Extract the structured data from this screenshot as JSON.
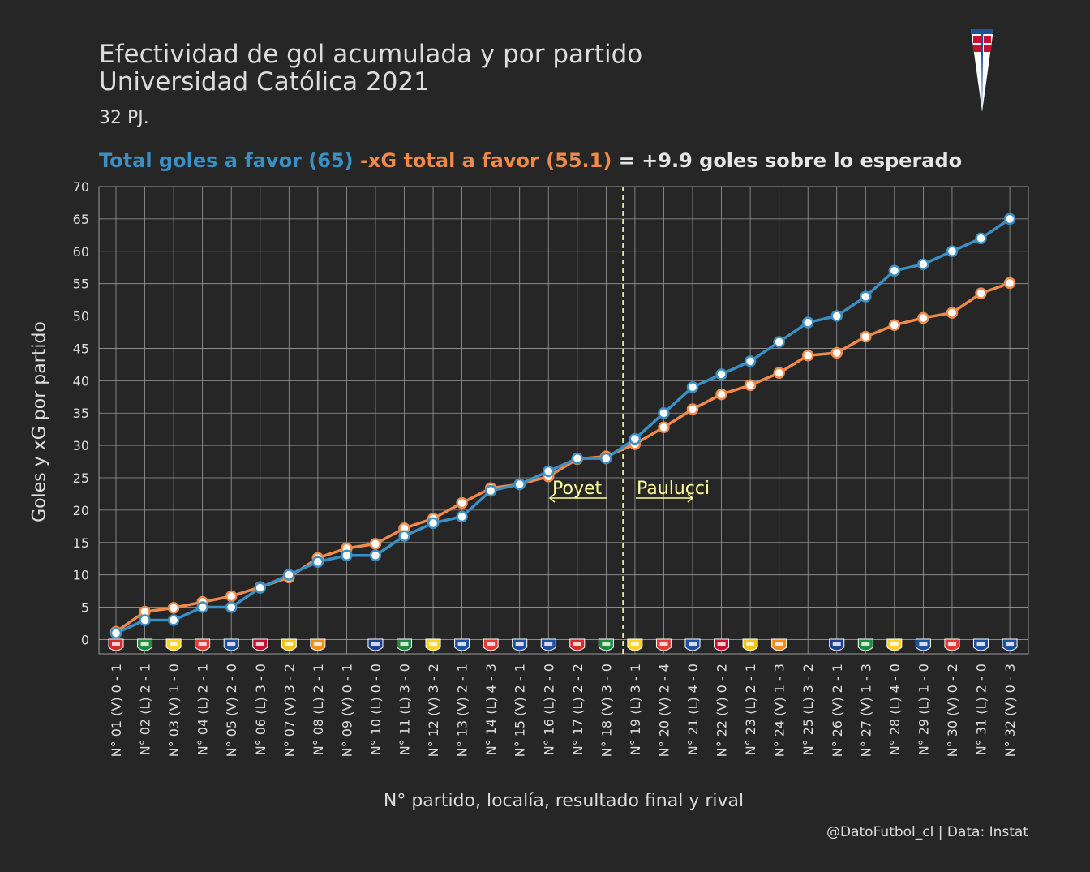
{
  "header": {
    "title_line1": "Efectividad de gol acumulada y por partido",
    "title_line2": "Universidad Católica 2021",
    "subtitle": "32 PJ.",
    "headline_goals": "Total goles a favor (65)",
    "headline_xg": "-xG total a favor (55.1)",
    "headline_result": "= +9.9 goles sobre lo esperado"
  },
  "caption": "@DatoFutbol_cl  |  Data: Instat",
  "colors": {
    "background": "#262626",
    "goals": "#3a8fc4",
    "xg": "#f08a4b",
    "annotation": "#ffff99",
    "grid": "#9a9a9a"
  },
  "chart_data": {
    "type": "line",
    "title": "Efectividad de gol acumulada y por partido",
    "xlabel": "N° partido, localía, resultado final y rival",
    "ylabel": "Goles y xG por partido",
    "ylim": [
      0,
      70
    ],
    "yticks": [
      0,
      5,
      10,
      15,
      20,
      25,
      30,
      35,
      40,
      45,
      50,
      55,
      60,
      65,
      70
    ],
    "grid": true,
    "categories": [
      "N° 01 (V) 0 - 1",
      "N° 02 (L) 2 - 1",
      "N° 03 (V) 1 - 0",
      "N° 04 (L) 2 - 1",
      "N° 05 (V) 2 - 0",
      "N° 06 (L) 3 - 0",
      "N° 07 (V) 3 - 2",
      "N° 08 (L) 2 - 1",
      "N° 09 (V) 0 - 1",
      "N° 10 (L) 0 - 0",
      "N° 11 (L) 3 - 0",
      "N° 12 (V) 3 - 2",
      "N° 13 (V) 2 - 1",
      "N° 14 (L) 4 - 3",
      "N° 15 (V) 2 - 1",
      "N° 16 (L) 2 - 0",
      "N° 17 (L) 2 - 2",
      "N° 18 (V) 3 - 0",
      "N° 19 (L) 3 - 1",
      "N° 20 (V) 2 - 4",
      "N° 21 (L) 4 - 0",
      "N° 22 (V) 0 - 2",
      "N° 23 (L) 2 - 1",
      "N° 24 (V) 1 - 3",
      "N° 25 (L) 3 - 2",
      "N° 26 (V) 2 - 1",
      "N° 27 (V) 1 - 3",
      "N° 28 (L) 4 - 0",
      "N° 29 (L) 1 - 0",
      "N° 30 (V) 0 - 2",
      "N° 31 (L) 2 - 0",
      "N° 32 (V) 0 - 3"
    ],
    "series": [
      {
        "name": "Total goles a favor",
        "color": "#3a8fc4",
        "values": [
          1,
          3,
          3,
          5,
          5,
          8,
          10,
          12,
          13,
          13,
          16,
          18,
          19,
          23,
          24,
          26,
          28,
          28,
          31,
          35,
          39,
          41,
          43,
          46,
          49,
          50,
          53,
          57,
          58,
          60,
          62,
          65
        ]
      },
      {
        "name": "xG total a favor",
        "color": "#f08a4b",
        "values": [
          1.2,
          4.3,
          4.9,
          5.8,
          6.7,
          8.1,
          9.6,
          12.6,
          14.1,
          14.8,
          17.2,
          18.7,
          21.1,
          23.4,
          24.0,
          25.2,
          27.9,
          28.3,
          30.2,
          32.8,
          35.6,
          37.9,
          39.3,
          41.2,
          43.9,
          44.3,
          46.8,
          48.6,
          49.7,
          50.5,
          53.5,
          55.1
        ]
      }
    ],
    "annotations": [
      {
        "text": "Poyet",
        "arrow": "left"
      },
      {
        "text": "Paulucci",
        "arrow": "right"
      }
    ],
    "divider_after_match": 18,
    "rival_crest_colors": [
      "#d42a2a",
      "#1f8a3c",
      "#ffd21f",
      "#e53935",
      "#1f4fa0",
      "#c8102e",
      "#f2c418",
      "#f28c18",
      "",
      "#1f3f8f",
      "#1f8a3c",
      "#ffd21f",
      "#1f4fa0",
      "#e53935",
      "#1f4fa0",
      "#1f4fa0",
      "#d42a2a",
      "#1f8a3c",
      "#ffd21f",
      "#e53935",
      "#1f4fa0",
      "#c8102e",
      "#f2c418",
      "#f28c18",
      "",
      "#1f3f8f",
      "#1f8a3c",
      "#ffd21f",
      "#1f4fa0",
      "#e53935",
      "#1f4fa0",
      "#1f4fa0"
    ]
  }
}
